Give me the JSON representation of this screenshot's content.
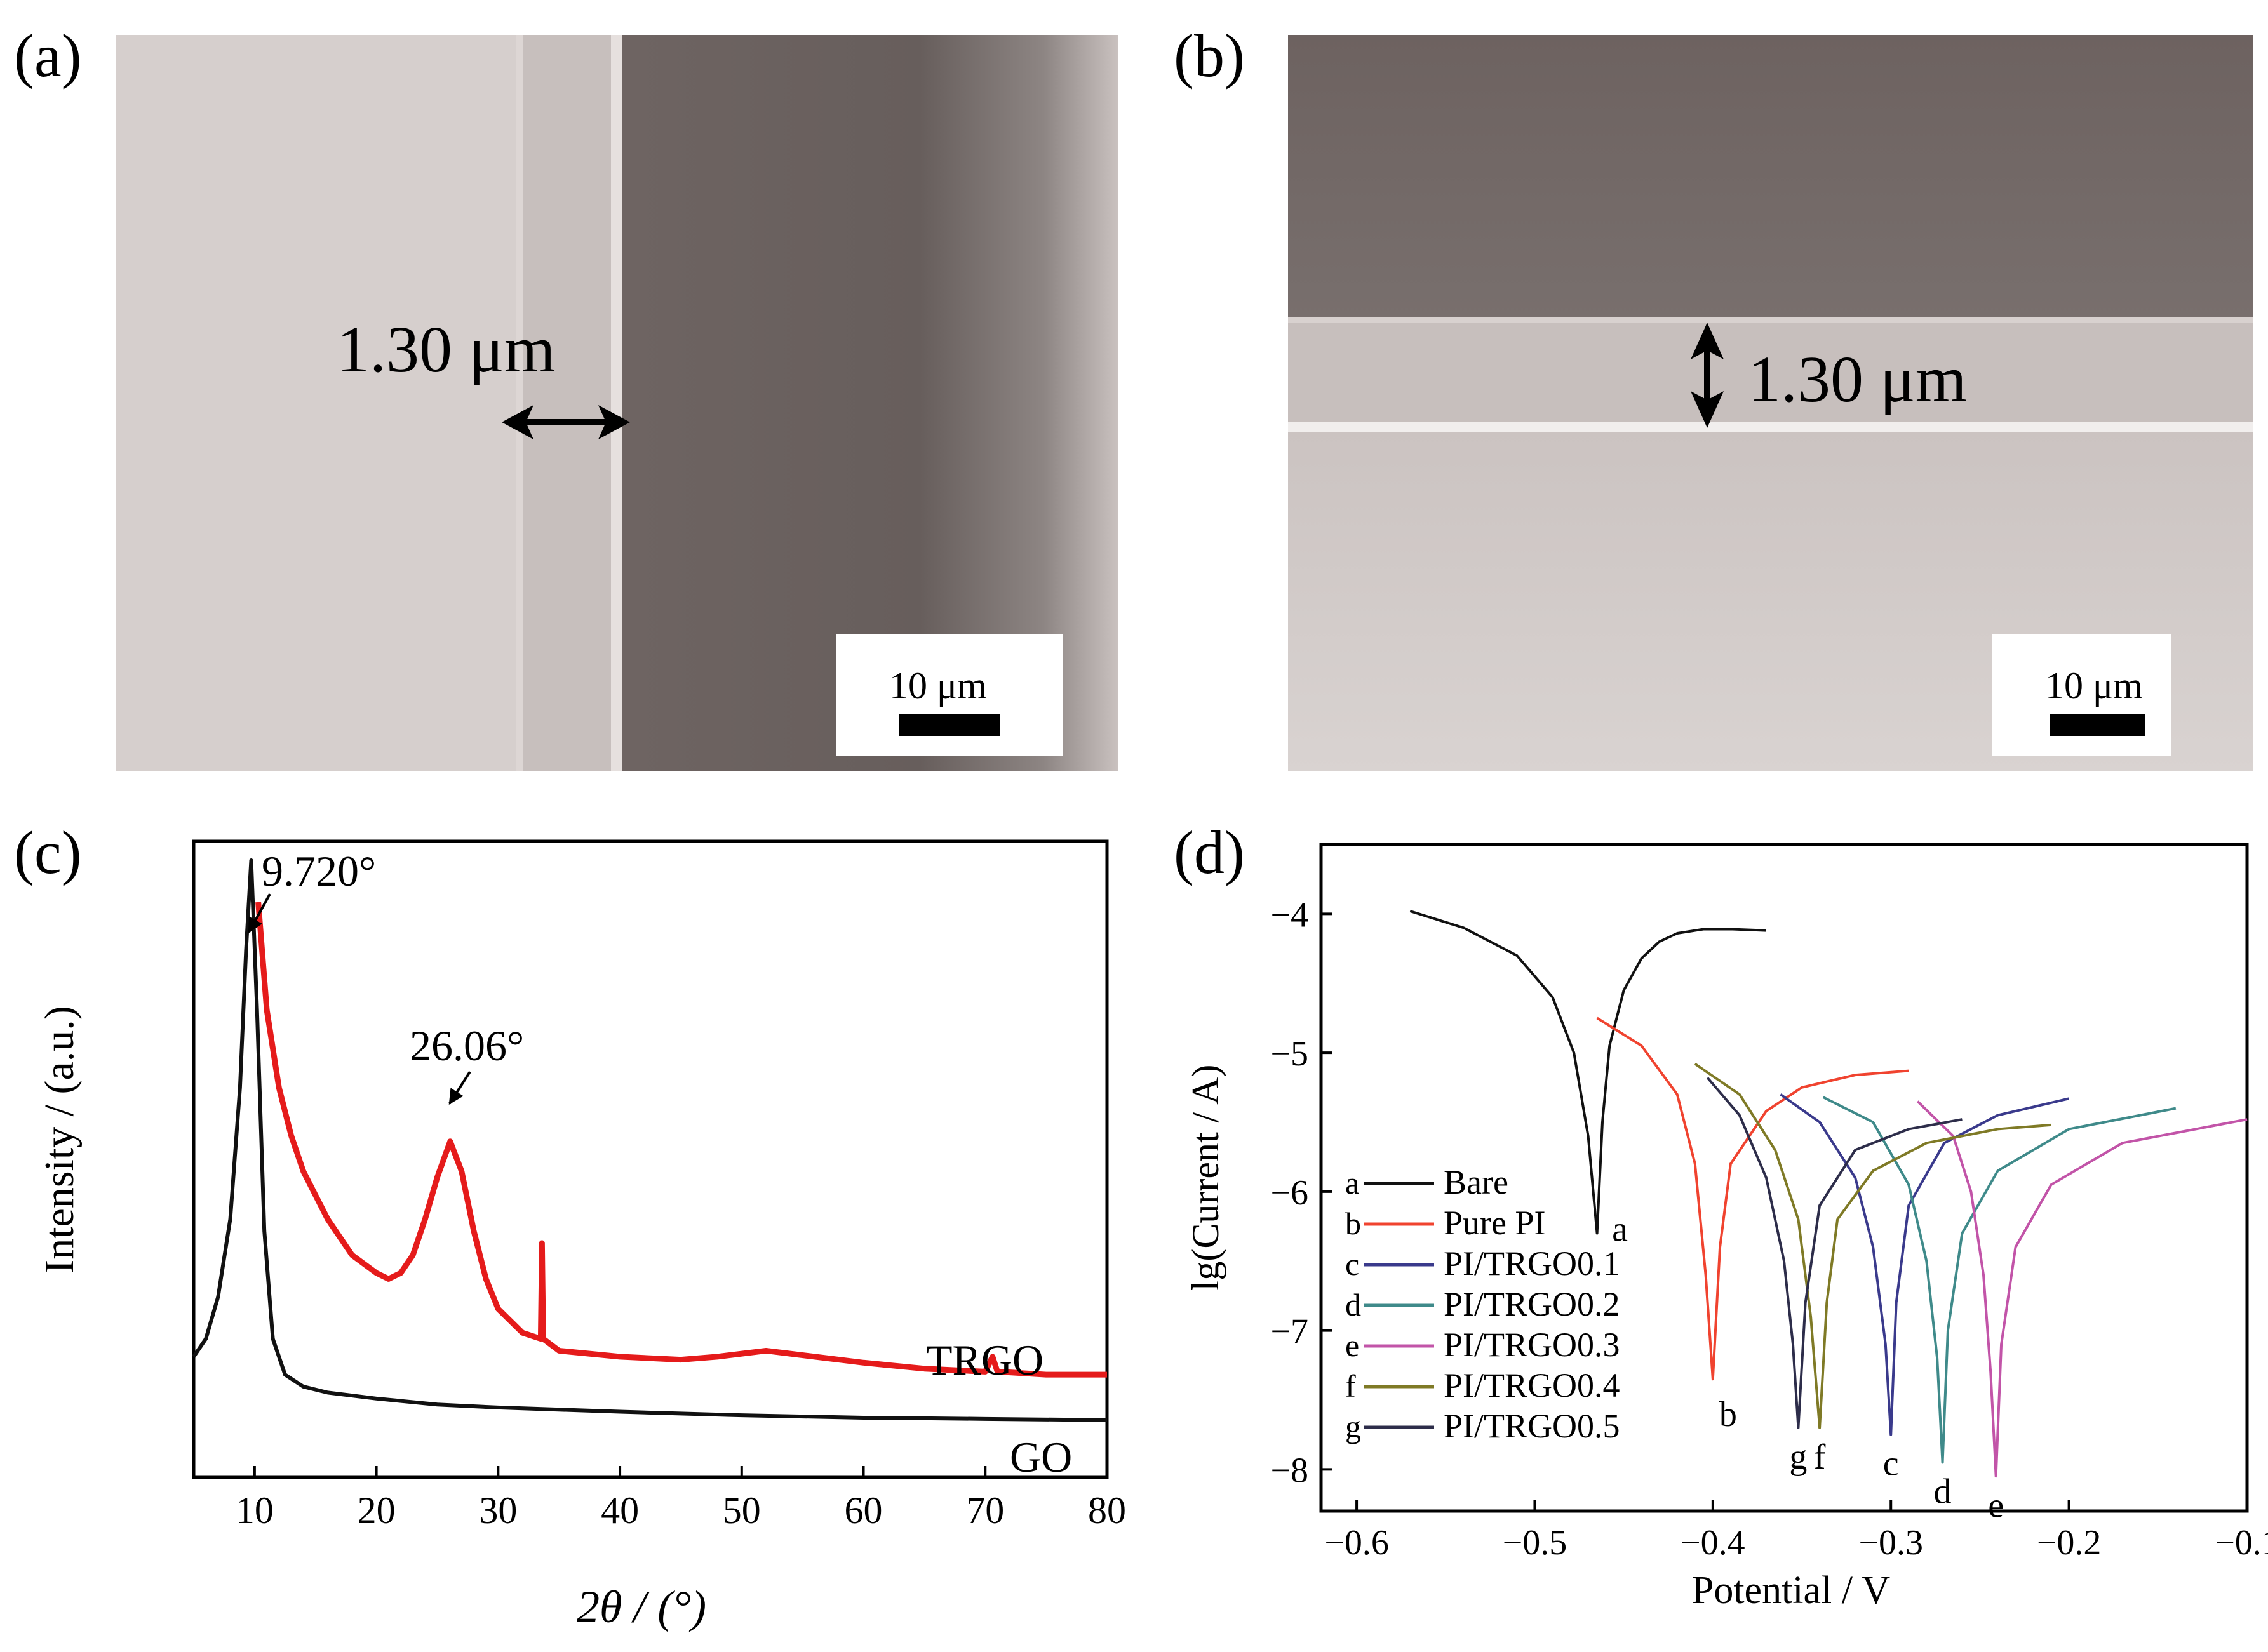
{
  "panels": {
    "a": {
      "label": "(a)",
      "measurement": "1.30 μm",
      "scalebar": "10 μm"
    },
    "b": {
      "label": "(b)",
      "measurement": "1.30 μm",
      "scalebar": "10 μm"
    },
    "c": {
      "label": "(c)"
    },
    "d": {
      "label": "(d)"
    }
  },
  "colors": {
    "black_series": "#111111",
    "trgo": "#e51b1b",
    "bare": "#111111",
    "pure_pi": "#f0432f",
    "trgo01": "#3a3a8c",
    "trgo02": "#3f8a8a",
    "trgo03": "#c254a8",
    "trgo04": "#7f7a26",
    "trgo05": "#2d2d4a"
  },
  "chart_data": [
    {
      "panel": "c",
      "type": "line",
      "title": "",
      "xlabel": "2θ / (°)",
      "ylabel": "Intensity / (a.u.)",
      "xlim": [
        5,
        80
      ],
      "xticks": [
        10,
        20,
        30,
        40,
        50,
        60,
        70,
        80
      ],
      "yticks": [],
      "grid": false,
      "series": [
        {
          "name": "GO",
          "color": "#111111",
          "x": [
            5,
            6,
            7,
            8,
            8.8,
            9.3,
            9.72,
            10.2,
            10.8,
            11.5,
            12.5,
            14,
            16,
            20,
            25,
            30,
            40,
            50,
            60,
            70,
            80
          ],
          "y": [
            0.17,
            0.2,
            0.27,
            0.4,
            0.62,
            0.85,
            1.0,
            0.75,
            0.38,
            0.2,
            0.14,
            0.12,
            0.11,
            0.1,
            0.09,
            0.085,
            0.078,
            0.072,
            0.068,
            0.066,
            0.064
          ]
        },
        {
          "name": "TRGO",
          "color": "#e51b1b",
          "x": [
            10.3,
            11,
            12,
            13,
            14,
            16,
            18,
            20,
            21,
            22,
            23,
            24,
            25,
            26.06,
            27,
            28,
            29,
            30,
            32,
            33.5,
            33.6,
            33.7,
            35,
            40,
            45,
            48,
            52,
            56,
            60,
            65,
            70,
            70.6,
            71,
            75,
            80
          ],
          "y": [
            0.93,
            0.75,
            0.62,
            0.54,
            0.48,
            0.4,
            0.34,
            0.31,
            0.3,
            0.31,
            0.34,
            0.4,
            0.47,
            0.53,
            0.48,
            0.38,
            0.3,
            0.25,
            0.21,
            0.2,
            0.36,
            0.2,
            0.18,
            0.17,
            0.165,
            0.17,
            0.18,
            0.17,
            0.16,
            0.15,
            0.145,
            0.17,
            0.145,
            0.14,
            0.14
          ]
        }
      ],
      "annotations": [
        {
          "text": "9.720°",
          "x": 9.72,
          "y": 1.0
        },
        {
          "text": "26.06°",
          "x": 26.06,
          "y": 0.53
        }
      ],
      "series_labels": [
        "TRGO",
        "GO"
      ]
    },
    {
      "panel": "d",
      "type": "line",
      "title": "",
      "xlabel": "Potential / V",
      "ylabel": "lg(Current / A)",
      "xlim": [
        -0.62,
        -0.1
      ],
      "ylim": [
        -8.3,
        -3.5
      ],
      "xticks": [
        -0.6,
        -0.5,
        -0.4,
        -0.3,
        -0.2,
        -0.1
      ],
      "xtick_labels": [
        "−0.6",
        "−0.5",
        "−0.4",
        "−0.3",
        "−0.2",
        "−0.1"
      ],
      "yticks": [
        -8,
        -7,
        -6,
        -5,
        -4
      ],
      "ytick_labels": [
        "−8",
        "−7",
        "−6",
        "−5",
        "−4"
      ],
      "grid": false,
      "legend": {
        "placement": "left",
        "entries": [
          {
            "key": "a",
            "name": "Bare"
          },
          {
            "key": "b",
            "name": "Pure PI"
          },
          {
            "key": "c",
            "name": "PI/TRGO0.1"
          },
          {
            "key": "d",
            "name": "PI/TRGO0.2"
          },
          {
            "key": "e",
            "name": "PI/TRGO0.3"
          },
          {
            "key": "f",
            "name": "PI/TRGO0.4"
          },
          {
            "key": "g",
            "name": "PI/TRGO0.5"
          }
        ]
      },
      "series": [
        {
          "key": "a",
          "name": "Bare",
          "color": "#111111",
          "x": [
            -0.57,
            -0.54,
            -0.51,
            -0.49,
            -0.478,
            -0.47,
            -0.465,
            -0.462,
            -0.458,
            -0.45,
            -0.44,
            -0.43,
            -0.42,
            -0.405,
            -0.39,
            -0.37
          ],
          "y": [
            -3.98,
            -4.1,
            -4.3,
            -4.6,
            -5.0,
            -5.6,
            -6.3,
            -5.5,
            -4.95,
            -4.55,
            -4.32,
            -4.2,
            -4.14,
            -4.11,
            -4.11,
            -4.12
          ]
        },
        {
          "key": "b",
          "name": "Pure PI",
          "color": "#f0432f",
          "x": [
            -0.465,
            -0.44,
            -0.42,
            -0.41,
            -0.404,
            -0.4,
            -0.396,
            -0.39,
            -0.37,
            -0.35,
            -0.32,
            -0.29
          ],
          "y": [
            -4.75,
            -4.95,
            -5.3,
            -5.8,
            -6.6,
            -7.35,
            -6.4,
            -5.8,
            -5.42,
            -5.25,
            -5.16,
            -5.13
          ]
        },
        {
          "key": "c",
          "name": "PI/TRGO0.1",
          "color": "#3a3a8c",
          "x": [
            -0.362,
            -0.34,
            -0.32,
            -0.31,
            -0.303,
            -0.3,
            -0.297,
            -0.29,
            -0.27,
            -0.24,
            -0.2
          ],
          "y": [
            -5.3,
            -5.5,
            -5.9,
            -6.4,
            -7.1,
            -7.75,
            -6.8,
            -6.1,
            -5.65,
            -5.45,
            -5.33
          ]
        },
        {
          "key": "d",
          "name": "PI/TRGO0.2",
          "color": "#3f8a8a",
          "x": [
            -0.338,
            -0.31,
            -0.29,
            -0.28,
            -0.274,
            -0.271,
            -0.268,
            -0.26,
            -0.24,
            -0.2,
            -0.14
          ],
          "y": [
            -5.32,
            -5.5,
            -5.95,
            -6.5,
            -7.2,
            -7.95,
            -7.0,
            -6.3,
            -5.85,
            -5.55,
            -5.4
          ]
        },
        {
          "key": "e",
          "name": "PI/TRGO0.3",
          "color": "#c254a8",
          "x": [
            -0.285,
            -0.265,
            -0.255,
            -0.248,
            -0.244,
            -0.241,
            -0.238,
            -0.23,
            -0.21,
            -0.17,
            -0.1
          ],
          "y": [
            -5.35,
            -5.6,
            -6.0,
            -6.6,
            -7.3,
            -8.05,
            -7.1,
            -6.4,
            -5.95,
            -5.65,
            -5.48
          ]
        },
        {
          "key": "f",
          "name": "PI/TRGO0.4",
          "color": "#7f7a26",
          "x": [
            -0.41,
            -0.385,
            -0.365,
            -0.352,
            -0.345,
            -0.34,
            -0.336,
            -0.33,
            -0.31,
            -0.28,
            -0.24,
            -0.21
          ],
          "y": [
            -5.08,
            -5.3,
            -5.7,
            -6.2,
            -6.9,
            -7.7,
            -6.8,
            -6.2,
            -5.85,
            -5.65,
            -5.55,
            -5.52
          ]
        },
        {
          "key": "g",
          "name": "PI/TRGO0.5",
          "color": "#2d2d4a",
          "x": [
            -0.403,
            -0.385,
            -0.37,
            -0.36,
            -0.355,
            -0.352,
            -0.348,
            -0.34,
            -0.32,
            -0.29,
            -0.26
          ],
          "y": [
            -5.18,
            -5.45,
            -5.9,
            -6.5,
            -7.1,
            -7.7,
            -6.8,
            -6.1,
            -5.7,
            -5.55,
            -5.48
          ]
        }
      ],
      "curve_labels": [
        {
          "key": "a",
          "text": "a"
        },
        {
          "key": "b",
          "text": "b"
        },
        {
          "key": "g",
          "text": "g"
        },
        {
          "key": "f",
          "text": "f"
        },
        {
          "key": "c",
          "text": "c"
        },
        {
          "key": "d",
          "text": "d"
        },
        {
          "key": "e",
          "text": "e"
        }
      ]
    }
  ]
}
